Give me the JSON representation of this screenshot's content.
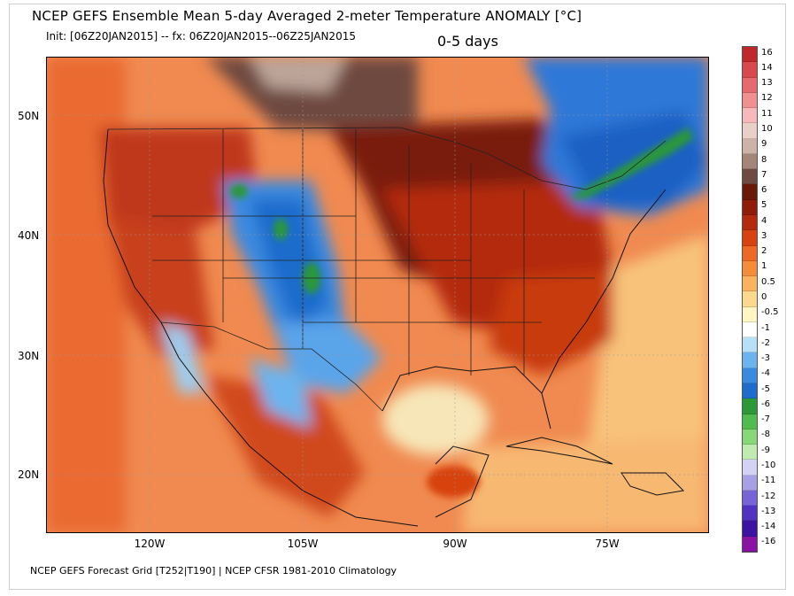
{
  "title": "NCEP GEFS Ensemble Mean 5-day Averaged 2-meter Temperature ANOMALY [°C]",
  "subtitle": "Init: [06Z20JAN2015] -- fx: 06Z20JAN2015--06Z25JAN2015",
  "period": "0-5 days",
  "footer": "NCEP GEFS Forecast Grid [T252|T190] | NCEP CFSR 1981-2010 Climatology",
  "lat_ticks": [
    "50N",
    "40N",
    "30N",
    "20N"
  ],
  "lon_ticks": [
    "120W",
    "105W",
    "90W",
    "75W"
  ],
  "colorbar": {
    "labels": [
      "16",
      "14",
      "13",
      "12",
      "11",
      "10",
      "9",
      "8",
      "7",
      "6",
      "5",
      "4",
      "3",
      "2",
      "1",
      "0.5",
      "0",
      "-0.5",
      "-1",
      "-2",
      "-3",
      "-4",
      "-5",
      "-6",
      "-7",
      "-8",
      "-9",
      "-10",
      "-11",
      "-12",
      "-13",
      "-14",
      "-16"
    ],
    "colors": [
      "#c0282b",
      "#d8484c",
      "#e66a6d",
      "#f09092",
      "#f6b8b8",
      "#e8d0c8",
      "#cdb2a8",
      "#a48578",
      "#6e4a40",
      "#6a1808",
      "#8e1c08",
      "#b42a0c",
      "#d8420f",
      "#ec6a24",
      "#f48c3a",
      "#f9b35c",
      "#fbd98c",
      "#fff6c4",
      "#ffffff",
      "#b7e0f6",
      "#6cb4ee",
      "#3a8ae0",
      "#1e6ccc",
      "#2c9838",
      "#50bc4e",
      "#86d878",
      "#bfeab0",
      "#d4d2f2",
      "#a8a0e6",
      "#7864d6",
      "#5232c2",
      "#3c14a4",
      "#8a12a4"
    ]
  }
}
